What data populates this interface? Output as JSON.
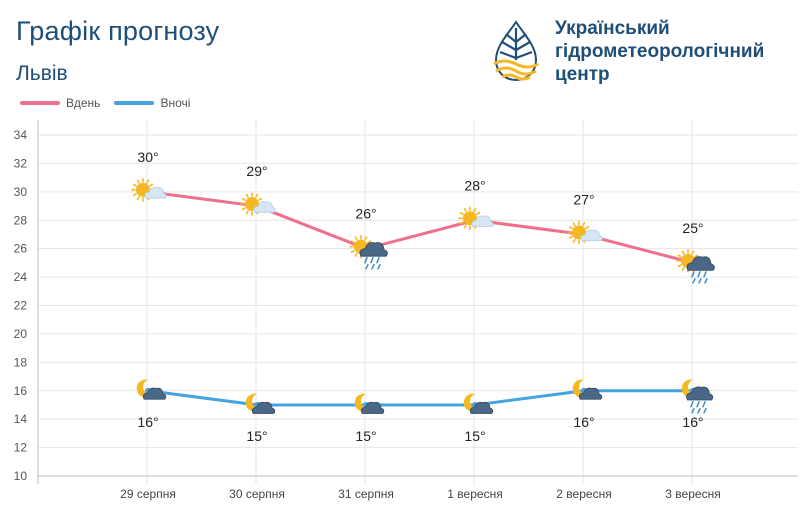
{
  "header": {
    "title": "Графік прогнозу",
    "city": "Львів",
    "org_lines": [
      "Український",
      "гідрометеорологічний",
      "центр"
    ]
  },
  "legend": {
    "day_label": "Вдень",
    "night_label": "Вночі"
  },
  "colors": {
    "day": "#ef6f8e",
    "night": "#45a3dd",
    "text_dark": "#1f4e79",
    "sun": "#f5b822",
    "cloud": "#4a6787"
  },
  "chart_data": {
    "type": "line",
    "categories": [
      "29 серпня",
      "30 серпня",
      "31 серпня",
      "1 вересня",
      "2 вересня",
      "3 вересня"
    ],
    "series": [
      {
        "name": "Вдень",
        "values": [
          30,
          29,
          26,
          28,
          27,
          25
        ],
        "labels": [
          "30°",
          "29°",
          "26°",
          "28°",
          "27°",
          "25°"
        ],
        "icons": [
          "sun-cloud-icon",
          "sun-cloud-icon",
          "sun-cloud-rain-icon",
          "sun-cloud-icon",
          "sun-cloud-icon",
          "sun-cloud-rain-icon"
        ]
      },
      {
        "name": "Вночі",
        "values": [
          16,
          15,
          15,
          15,
          16,
          16
        ],
        "labels": [
          "16°",
          "15°",
          "15°",
          "15°",
          "16°",
          "16°"
        ],
        "icons": [
          "moon-cloud-icon",
          "moon-cloud-icon",
          "moon-cloud-icon",
          "moon-cloud-icon",
          "moon-cloud-icon",
          "moon-cloud-rain-icon"
        ]
      }
    ],
    "yticks": [
      10,
      12,
      14,
      16,
      18,
      20,
      22,
      24,
      26,
      28,
      30,
      32,
      34
    ],
    "ylim": [
      10,
      35
    ],
    "grid": true,
    "legend_position": "top-left"
  }
}
